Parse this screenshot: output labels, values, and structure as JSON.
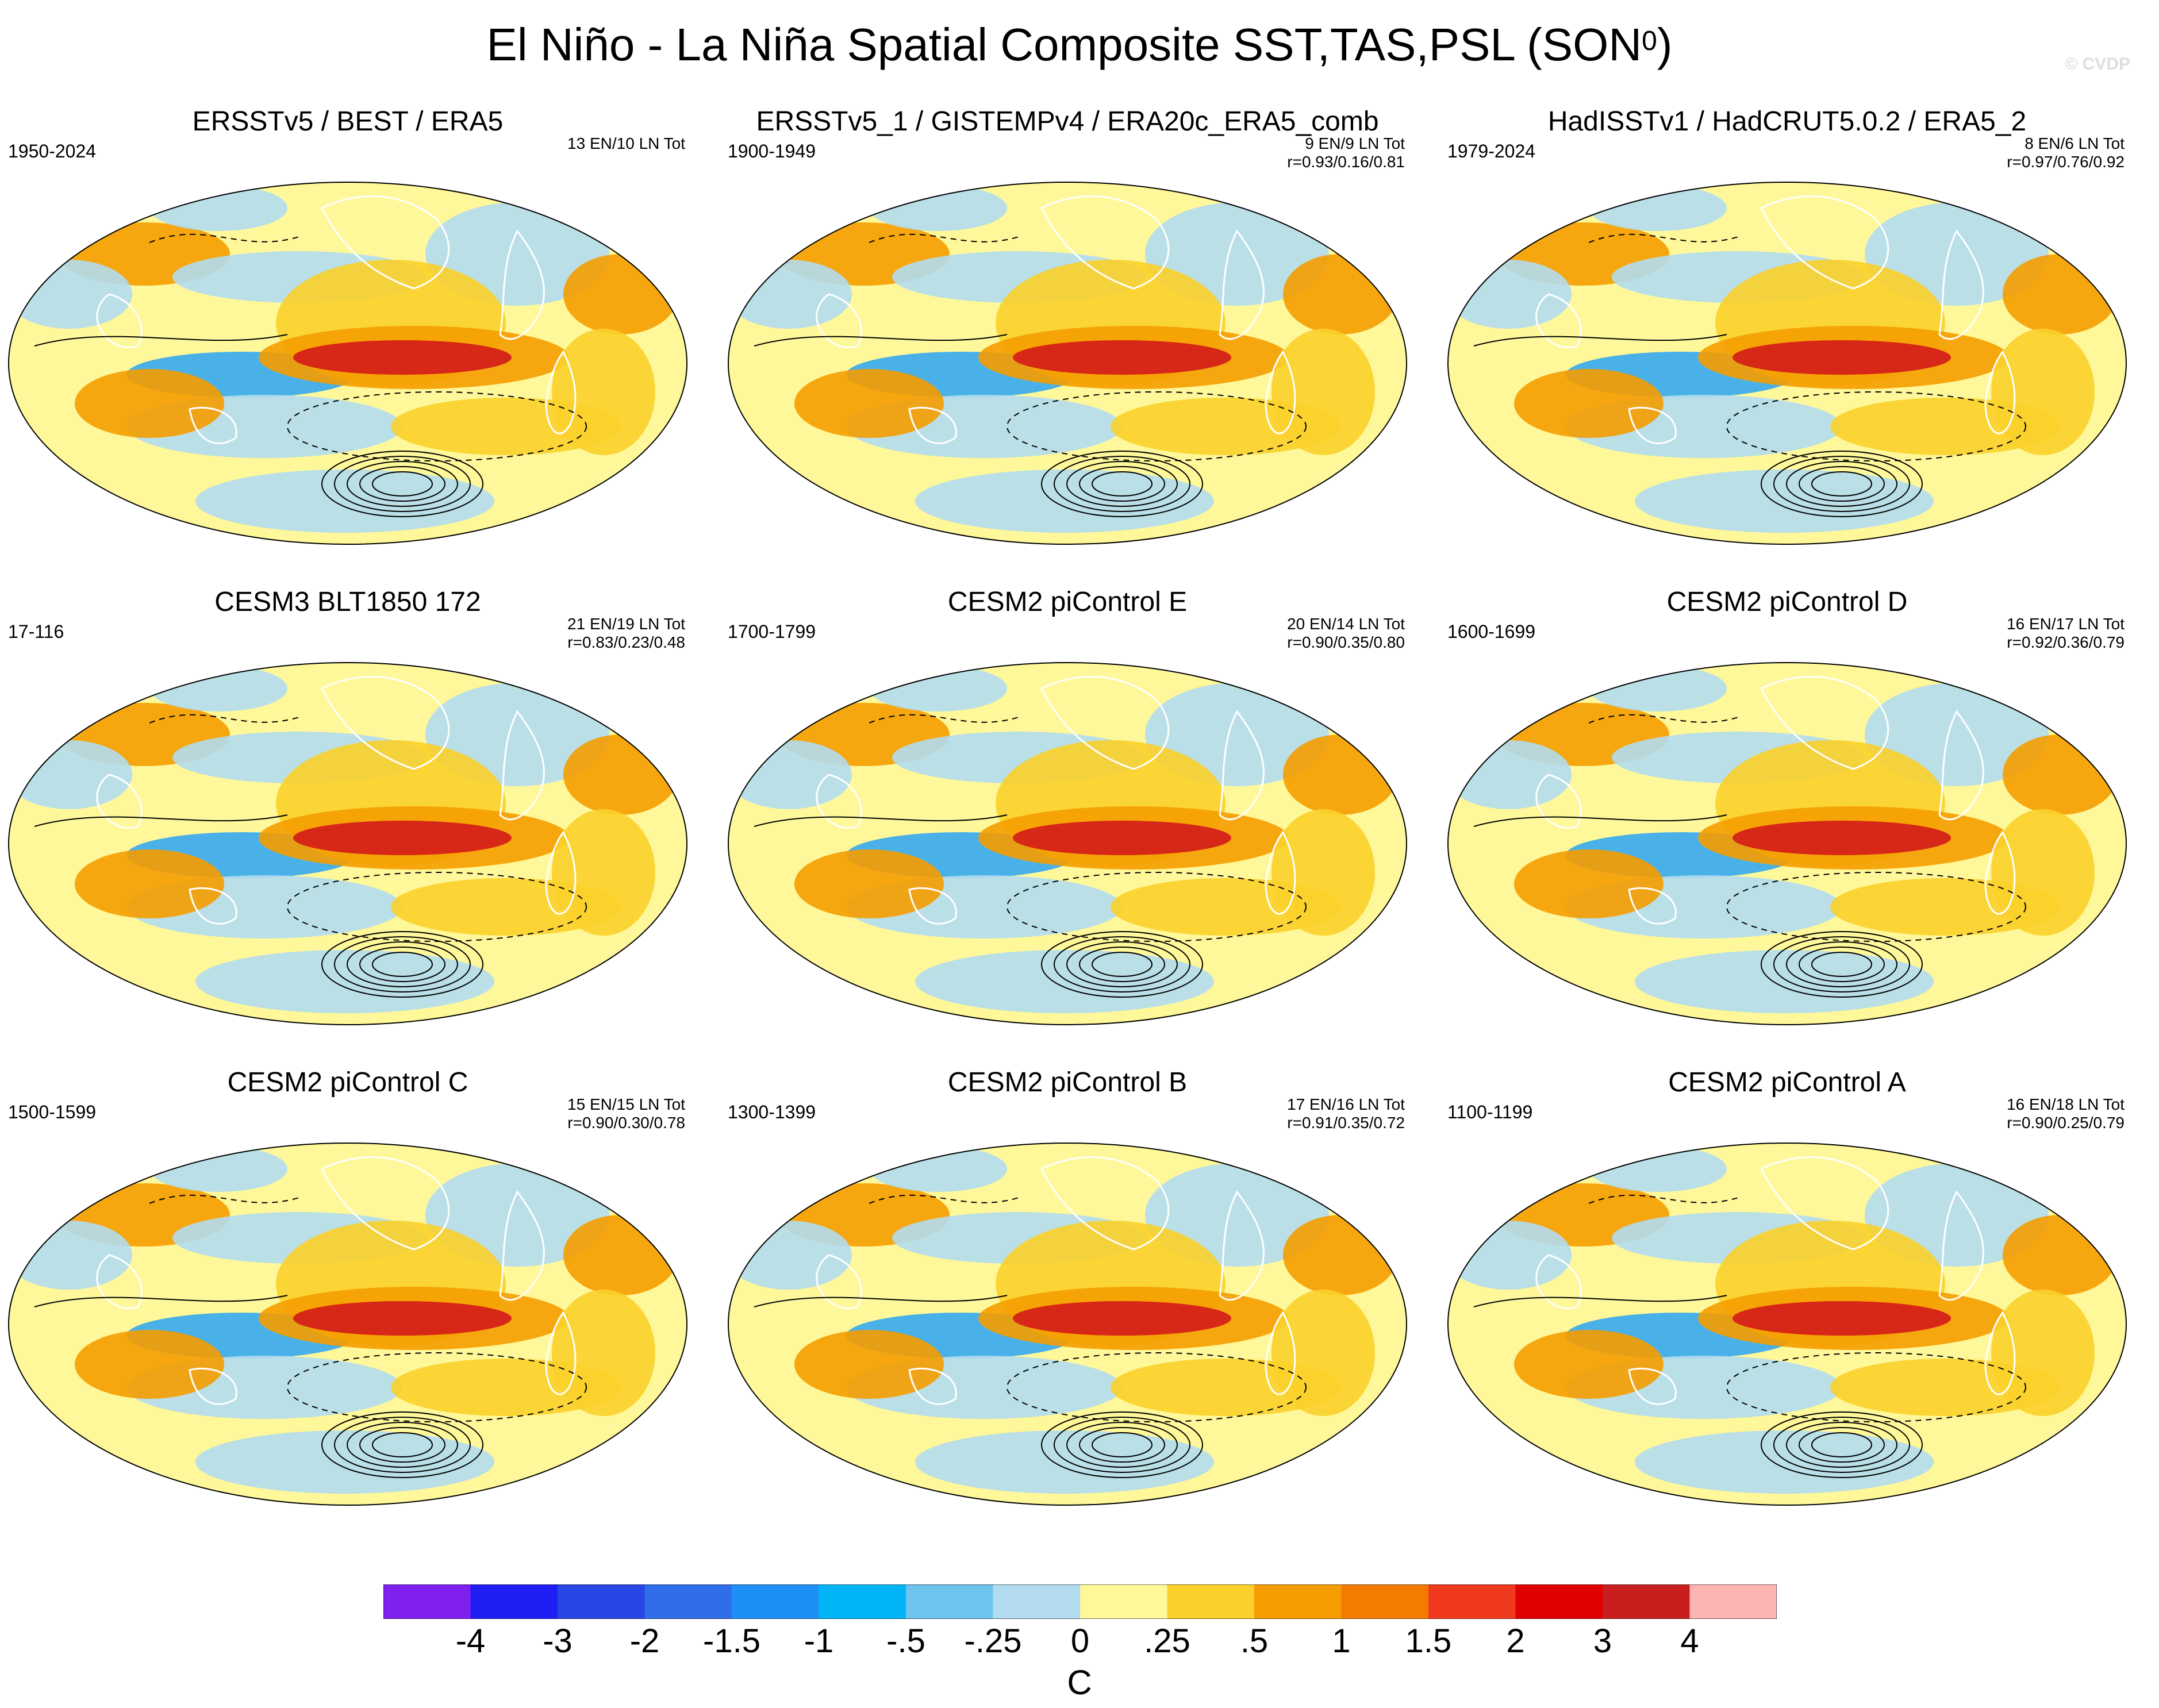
{
  "title_text": "El Niño - La Niña Spatial Composite SST,TAS,PSL (SON",
  "title_superscript": "0",
  "title_close": ")",
  "watermark": "© CVDP",
  "colors": {
    "ocean_warm_strong": "#d41a1a",
    "ocean_warm": "#f59d00",
    "ocean_mild": "#fbd02a",
    "ocean_neutral": "#fff89a",
    "ocean_cool": "#b3dcf0",
    "ocean_cold": "#35a9f0",
    "land_outline": "#ffffff",
    "contour": "#000000"
  },
  "panels": [
    {
      "title": "ERSSTv5 / BEST / ERA5",
      "years": "1950-2024",
      "counts": "13 EN/10 LN Tot",
      "corr": ""
    },
    {
      "title": "ERSSTv5_1 / GISTEMPv4 / ERA20c_ERA5_comb",
      "years": "1900-1949",
      "counts": "9 EN/9 LN Tot",
      "corr": "r=0.93/0.16/0.81"
    },
    {
      "title": "HadISSTv1 / HadCRUT5.0.2 / ERA5_2",
      "years": "1979-2024",
      "counts": "8 EN/6 LN Tot",
      "corr": "r=0.97/0.76/0.92"
    },
    {
      "title": "CESM3 BLT1850 172",
      "years": "17-116",
      "counts": "21 EN/19 LN Tot",
      "corr": "r=0.83/0.23/0.48"
    },
    {
      "title": "CESM2 piControl E",
      "years": "1700-1799",
      "counts": "20 EN/14 LN Tot",
      "corr": "r=0.90/0.35/0.80"
    },
    {
      "title": "CESM2 piControl D",
      "years": "1600-1699",
      "counts": "16 EN/17 LN Tot",
      "corr": "r=0.92/0.36/0.79"
    },
    {
      "title": "CESM2 piControl C",
      "years": "1500-1599",
      "counts": "15 EN/15 LN Tot",
      "corr": "r=0.90/0.30/0.78"
    },
    {
      "title": "CESM2 piControl B",
      "years": "1300-1399",
      "counts": "17 EN/16 LN Tot",
      "corr": "r=0.91/0.35/0.72"
    },
    {
      "title": "CESM2 piControl A",
      "years": "1100-1199",
      "counts": "16 EN/18 LN Tot",
      "corr": "r=0.90/0.25/0.79"
    }
  ],
  "colorbar": {
    "units": "C",
    "colors": [
      "#7f1ff0",
      "#1e1ef5",
      "#2846e6",
      "#2f6ee8",
      "#1e90f5",
      "#00b4f5",
      "#6ec3ef",
      "#b3dcf0",
      "#fff89a",
      "#fbd02a",
      "#f59d00",
      "#f57a00",
      "#ef3a1e",
      "#e00000",
      "#c81e1e",
      "#ffb4b4"
    ],
    "labels": [
      "-4",
      "-3",
      "-2",
      "-1.5",
      "-1",
      "-.5",
      "-.25",
      "0",
      ".25",
      ".5",
      "1",
      "1.5",
      "2",
      "3",
      "4"
    ]
  }
}
